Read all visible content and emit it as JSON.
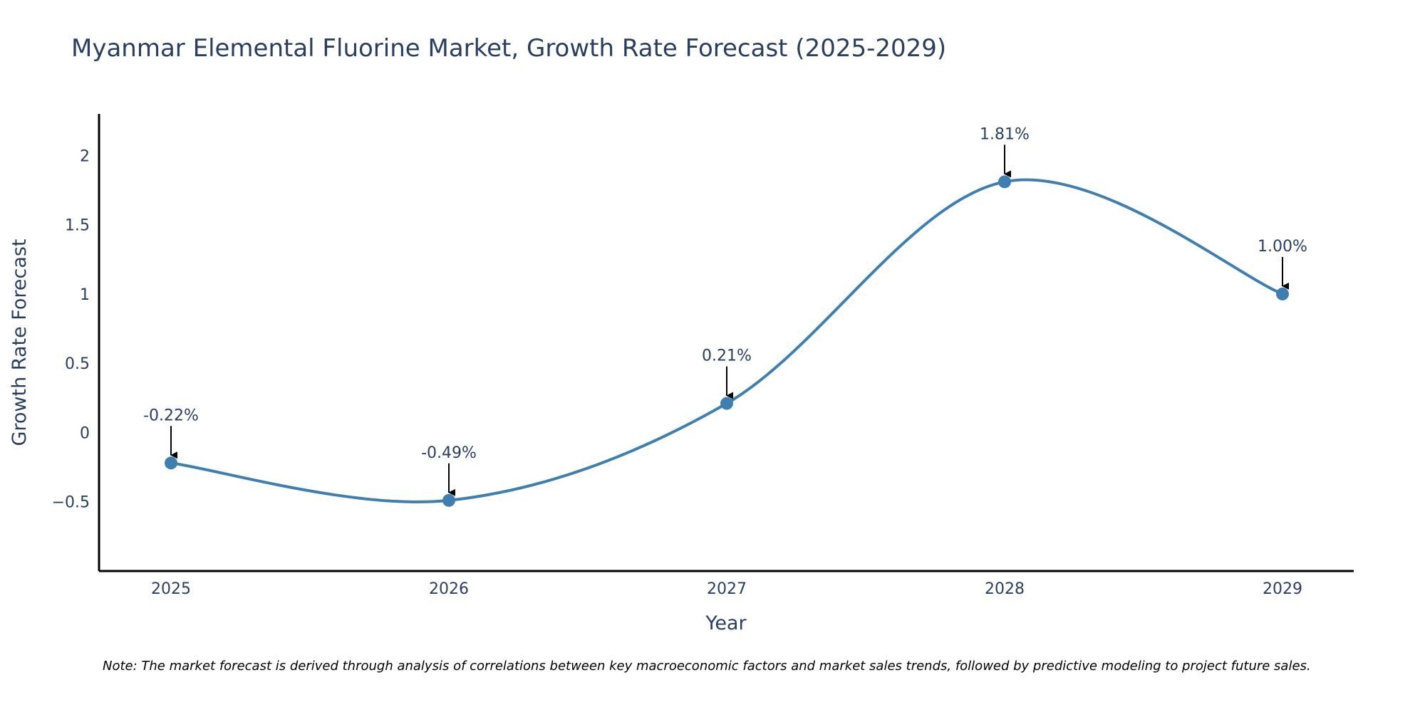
{
  "chart_data": {
    "type": "line",
    "title": "Myanmar Elemental Fluorine Market, Growth Rate Forecast (2025-2029)",
    "xlabel": "Year",
    "ylabel": "Growth Rate Forecast",
    "x": [
      "2025",
      "2026",
      "2027",
      "2028",
      "2029"
    ],
    "series": [
      {
        "name": "Growth Rate Forecast",
        "values": [
          -0.22,
          -0.49,
          0.21,
          1.81,
          1.0
        ]
      }
    ],
    "annotations": [
      "-0.22%",
      "-0.49%",
      "0.21%",
      "1.81%",
      "1.00%"
    ],
    "ylim": [
      -1.0,
      2.3
    ],
    "yticks": [
      -0.5,
      0,
      0.5,
      1,
      1.5,
      2
    ],
    "ytick_labels": [
      "−0.5",
      "0",
      "0.5",
      "1",
      "1.5",
      "2"
    ],
    "grid": false,
    "line_color": "#3f7fb0",
    "note": "Note: The market forecast is derived through analysis of correlations between key macroeconomic factors and market sales trends, followed by predictive modeling to project future sales."
  }
}
